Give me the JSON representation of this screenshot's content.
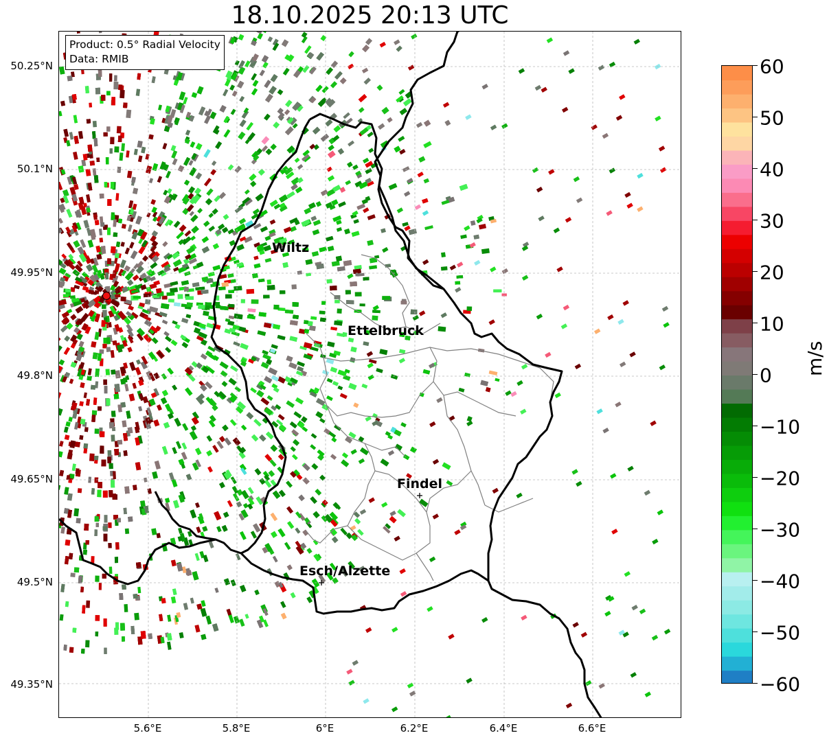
{
  "title": "18.10.2025 20:13 UTC",
  "info_box": {
    "line1": "Product: 0.5° Radial Velocity",
    "line2": "Data: RMIB"
  },
  "map": {
    "lat_ticks": [
      "50.25°N",
      "50.1°N",
      "49.95°N",
      "49.8°N",
      "49.65°N",
      "49.5°N",
      "49.35°N"
    ],
    "lon_ticks": [
      "5.6°E",
      "5.8°E",
      "6°E",
      "6.2°E",
      "6.4°E",
      "6.6°E"
    ],
    "cities": [
      "Wiltz",
      "Ettelbruck",
      "Findel",
      "Esch/Alzette"
    ],
    "radar_marker_color": "#ee1111",
    "border_color": "#000000",
    "canton_color": "#808080"
  },
  "colorbar": {
    "unit": "m/s",
    "ticks": [
      "60",
      "50",
      "40",
      "30",
      "20",
      "10",
      "0",
      "−10",
      "−20",
      "−30",
      "−40",
      "−50",
      "−60"
    ],
    "range": [
      -60,
      60
    ],
    "colors": [
      "#1f7fc5",
      "#22b0d4",
      "#2ad8dc",
      "#4ee0dc",
      "#6ee6e0",
      "#8ceae4",
      "#a2ecea",
      "#b8f0f0",
      "#90f4a6",
      "#6af57e",
      "#44f55a",
      "#22f030",
      "#10e010",
      "#0ece0e",
      "#0abc0a",
      "#08ac08",
      "#069c06",
      "#058c05",
      "#037c03",
      "#026b02",
      "#547a56",
      "#6a7a6a",
      "#7f7a76",
      "#87767a",
      "#875c62",
      "#7e4048",
      "#6a0000",
      "#850000",
      "#a00000",
      "#bb0000",
      "#d40000",
      "#ec0000",
      "#f51c30",
      "#f84664",
      "#fa6e8c",
      "#fc8ab4",
      "#fa9cc6",
      "#fbb4b8",
      "#fed6a4",
      "#fee29e",
      "#fdc483",
      "#fdb06e",
      "#fd9d5a",
      "#fd8e48"
    ]
  }
}
